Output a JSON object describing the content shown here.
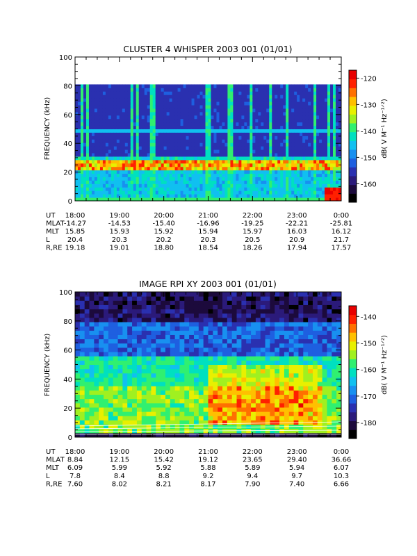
{
  "chart_data": [
    {
      "type": "heatmap",
      "title": "CLUSTER 4 WHISPER 2003 001 (01/01)",
      "ylabel": "FREQUENCY (kHz)",
      "ylim": [
        0,
        100
      ],
      "yticks": [
        "0",
        "20",
        "40",
        "60",
        "80",
        "100"
      ],
      "data_extent_khz": [
        0,
        80
      ],
      "xticks": [
        "18:00",
        "19:00",
        "20:00",
        "21:00",
        "22:00",
        "23:00",
        "0:00"
      ],
      "colorbar": {
        "label": "dB( V M⁻¹ Hz⁻¹ᐟ²)",
        "ticks": [
          "-120",
          "-130",
          "-140",
          "-150",
          "-160"
        ],
        "range": [
          -167,
          -117
        ]
      },
      "ephemeris_labels": [
        "UT",
        "MLAT",
        "MLT",
        "L",
        "R,RE"
      ],
      "ephemeris": {
        "MLAT": [
          "-14.27",
          "-14.53",
          "-15.40",
          "-16.96",
          "-19.25",
          "-22.21",
          "-25.81"
        ],
        "MLT": [
          "15.85",
          "15.93",
          "15.92",
          "15.94",
          "15.97",
          "16.03",
          "16.12"
        ],
        "L": [
          "20.4",
          "20.3",
          "20.2",
          "20.3",
          "20.5",
          "20.9",
          "21.7"
        ],
        "R,RE": [
          "19.18",
          "19.01",
          "18.80",
          "18.54",
          "18.26",
          "17.94",
          "17.57"
        ]
      },
      "features": {
        "emission_band_khz": [
          22,
          28
        ],
        "faint_line_khz": 48,
        "vertical_spikes_hours": [
          0.18,
          0.27,
          1.3,
          1.4,
          1.75,
          2.95,
          3.05,
          3.5,
          3.95,
          4.4,
          4.8,
          5.4,
          5.7,
          5.85
        ],
        "red_burst_hours": [
          5.6,
          6.0
        ]
      }
    },
    {
      "type": "heatmap",
      "title": "IMAGE RPI XY 2003 001 (01/01)",
      "ylabel": "FREQUENCY (kHz)",
      "ylim": [
        0,
        100
      ],
      "yticks": [
        "0",
        "20",
        "40",
        "60",
        "80",
        "100"
      ],
      "xticks": [
        "18:00",
        "19:00",
        "20:00",
        "21:00",
        "22:00",
        "23:00",
        "0:00"
      ],
      "colorbar": {
        "label": "dB( V M⁻¹ Hz⁻¹ᐟ²)",
        "ticks": [
          "-140",
          "-150",
          "-160",
          "-170",
          "-180"
        ],
        "range": [
          -186,
          -136
        ]
      },
      "ephemeris_labels": [
        "UT",
        "MLAT",
        "MLT",
        "L",
        "R,RE"
      ],
      "ephemeris": {
        "MLAT": [
          "8.84",
          "12.15",
          "15.42",
          "19.12",
          "23.65",
          "29.40",
          "36.66"
        ],
        "MLT": [
          "6.09",
          "5.99",
          "5.92",
          "5.88",
          "5.89",
          "5.94",
          "6.07"
        ],
        "L": [
          "7.8",
          "8.4",
          "8.8",
          "9.2",
          "9.4",
          "9.7",
          "10.3"
        ],
        "R,RE": [
          "7.60",
          "8.02",
          "8.21",
          "8.17",
          "7.90",
          "7.40",
          "6.66"
        ]
      },
      "features": {
        "hot_region_hours": [
          3.0,
          5.6
        ],
        "hot_region_khz": [
          8,
          50
        ]
      }
    }
  ],
  "palette": [
    "#000000",
    "#1c0a3c",
    "#2b1a7a",
    "#2a30b0",
    "#1e5fe0",
    "#1890f0",
    "#10c0f0",
    "#00e0c0",
    "#30f070",
    "#a0f020",
    "#e8f000",
    "#ffc000",
    "#ff7000",
    "#ff2000",
    "#e80000"
  ]
}
